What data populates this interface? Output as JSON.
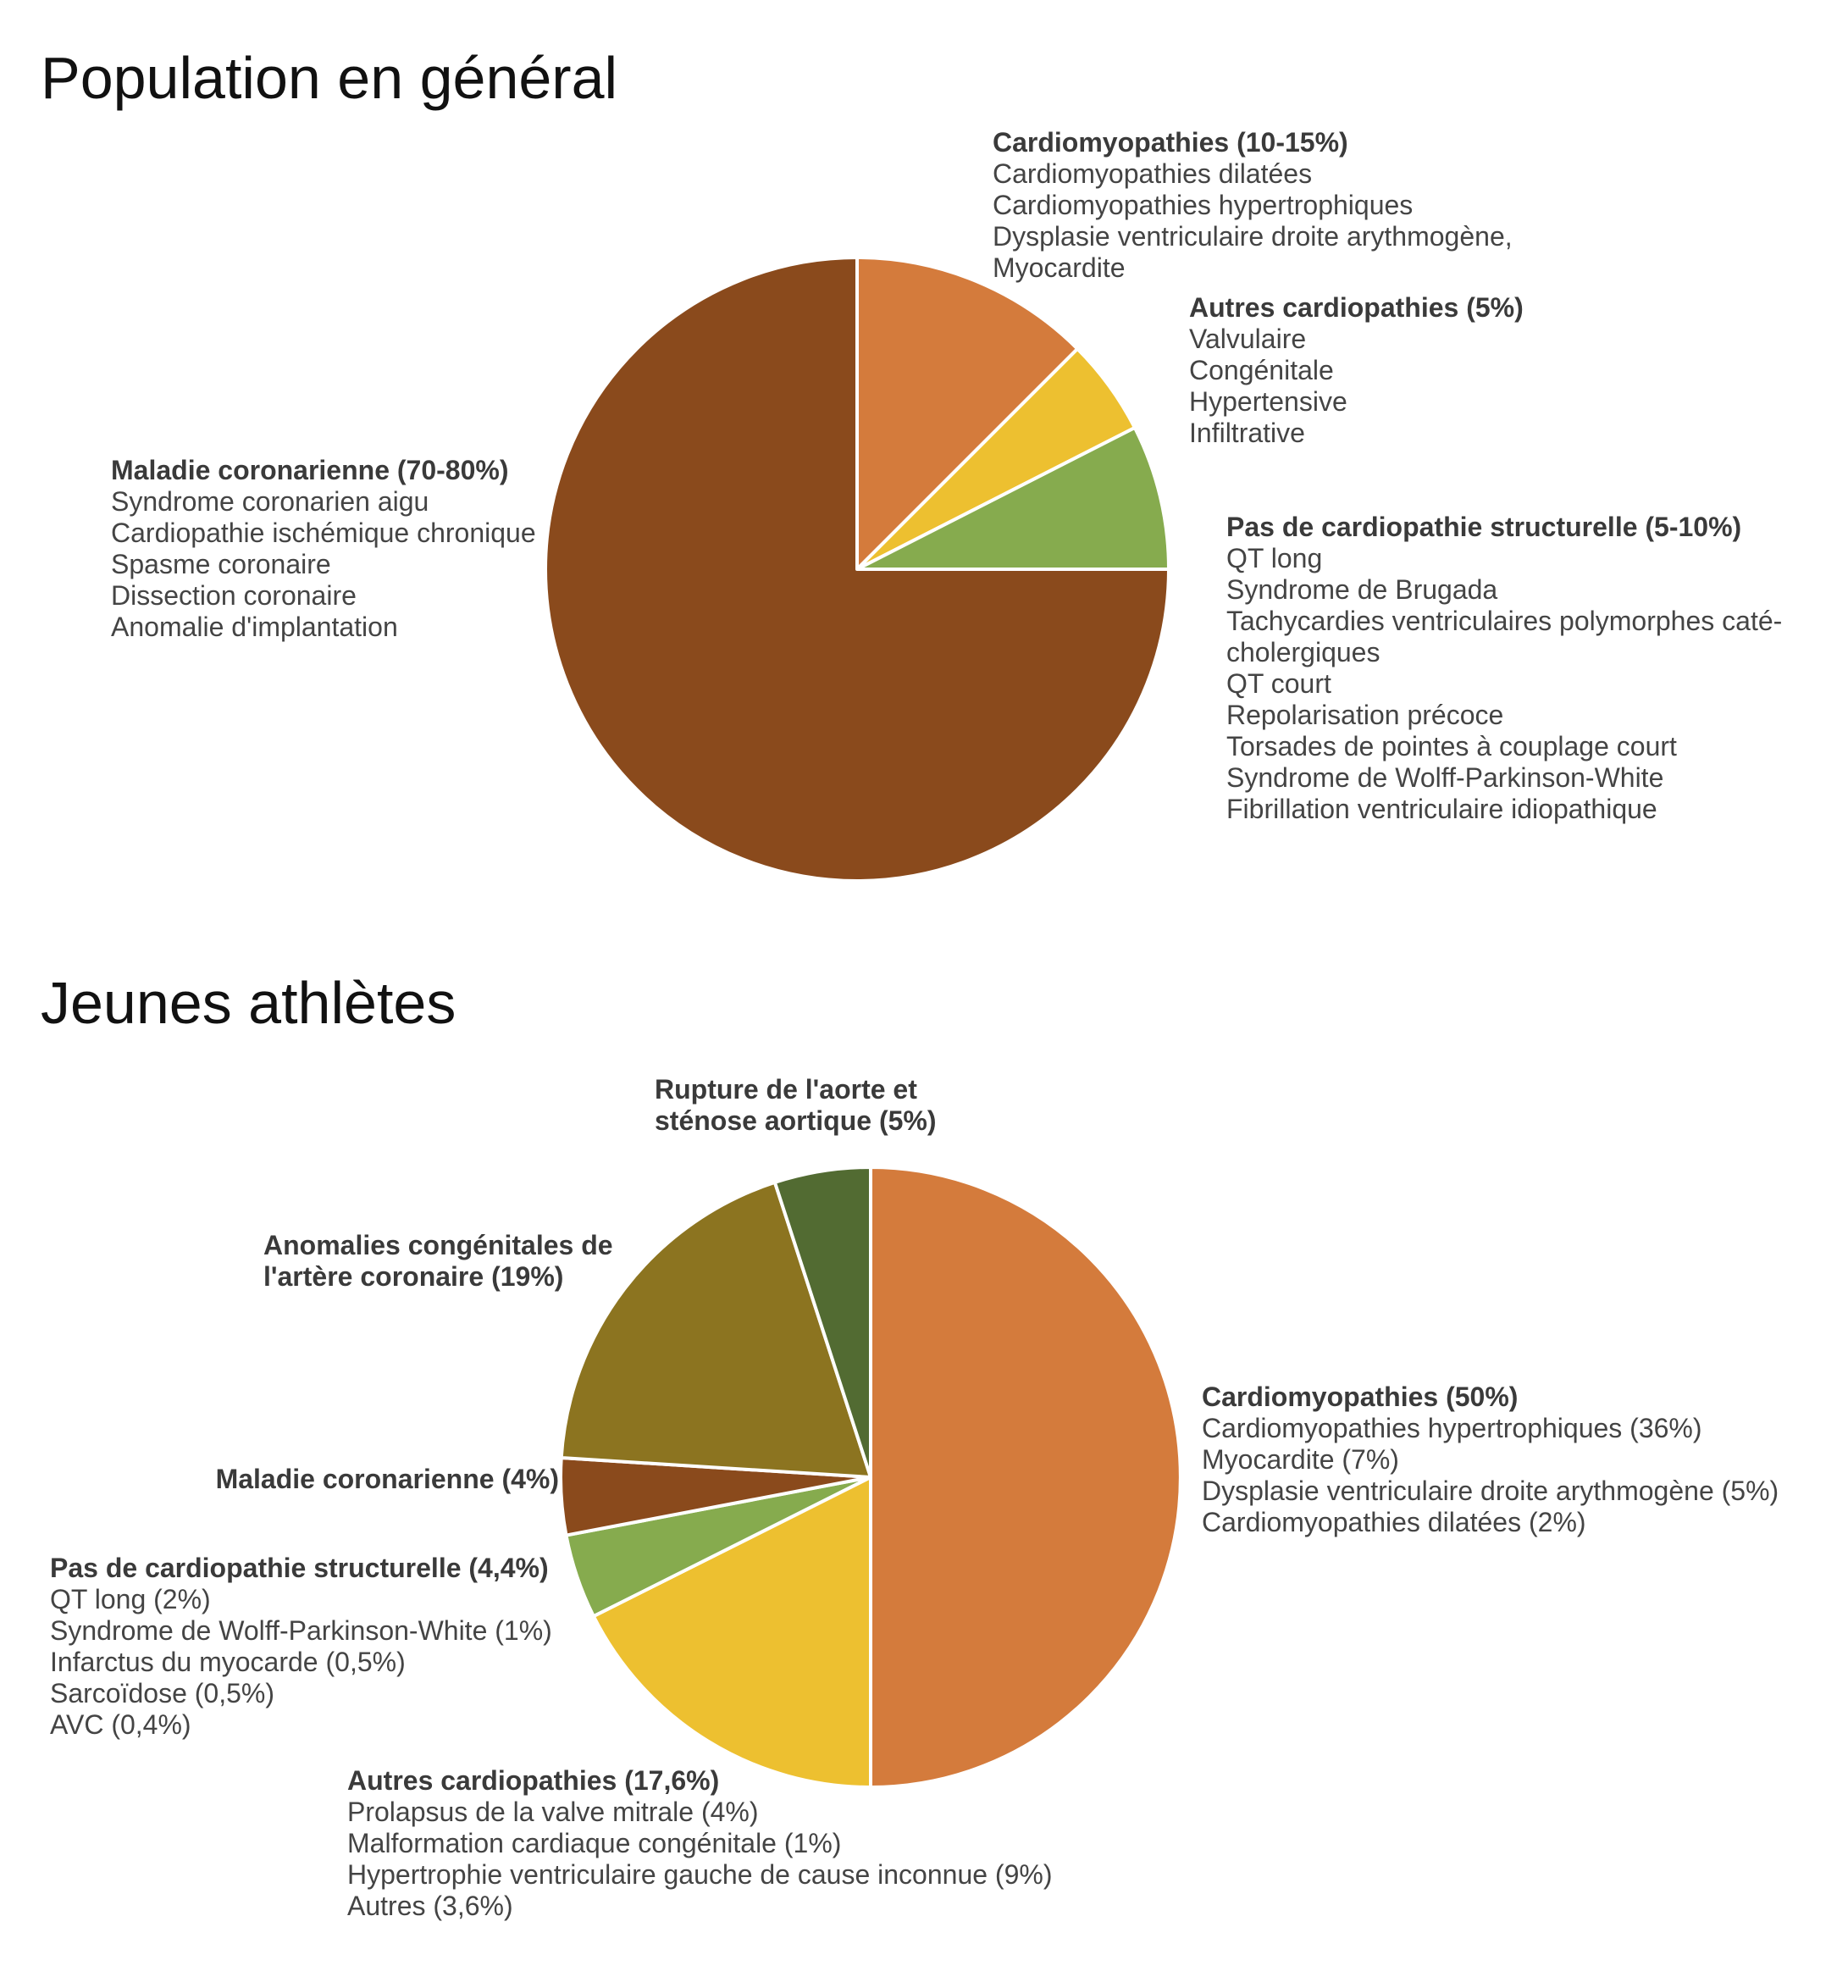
{
  "chart_data": [
    {
      "type": "pie",
      "title": "Population en général",
      "slices": [
        {
          "heading": "Cardiomyopathies (10-15%)",
          "value": 12.5,
          "color": "#D47B3C",
          "items": [
            "Cardiomyopathies dilatées",
            "Cardiomyopathies hypertrophiques",
            "Dysplasie ventriculaire droite arythmogène,",
            "Myocardite"
          ]
        },
        {
          "heading": "Autres cardiopathies (5%)",
          "value": 5,
          "color": "#EDC030",
          "items": [
            "Valvulaire",
            "Congénitale",
            "Hypertensive",
            "Infiltrative"
          ]
        },
        {
          "heading": "Pas de cardiopathie structurelle (5-10%)",
          "value": 7.5,
          "color": "#86AB4E",
          "items": [
            "QT long",
            "Syndrome de Brugada",
            "Tachycardies ventriculaires polymorphes caté-",
            "cholergiques",
            "QT court",
            "Repolarisation précoce",
            "Torsades de pointes à couplage court",
            "Syndrome de Wolff-Parkinson-White",
            "Fibrillation ventriculaire idiopathique"
          ]
        },
        {
          "heading": "Maladie coronarienne (70-80%)",
          "value": 75,
          "color": "#8A4A1C",
          "items": [
            "Syndrome coronarien aigu",
            "Cardiopathie ischémique chronique",
            "Spasme coronaire",
            "Dissection coronaire",
            "Anomalie d'implantation"
          ]
        }
      ]
    },
    {
      "type": "pie",
      "title": "Jeunes athlètes",
      "slices": [
        {
          "heading": "Cardiomyopathies (50%)",
          "value": 50,
          "color": "#D47B3C",
          "items": [
            "Cardiomyopathies hypertrophiques (36%)",
            "Myocardite (7%)",
            "Dysplasie ventriculaire droite arythmogène (5%)",
            "Cardiomyopathies dilatées (2%)"
          ]
        },
        {
          "heading": "Autres cardiopathies (17,6%)",
          "value": 17.6,
          "color": "#EDC030",
          "items": [
            "Prolapsus de la valve mitrale (4%)",
            "Malformation cardiaque congénitale (1%)",
            "Hypertrophie ventriculaire gauche de cause inconnue (9%)",
            "Autres (3,6%)"
          ]
        },
        {
          "heading": "Pas de cardiopathie structurelle (4,4%)",
          "value": 4.4,
          "color": "#86AB4E",
          "items": [
            "QT long (2%)",
            "Syndrome de Wolff-Parkinson-White (1%)",
            "Infarctus du myocarde (0,5%)",
            "Sarcoïdose (0,5%)",
            "AVC (0,4%)"
          ]
        },
        {
          "heading": "Maladie coronarienne (4%)",
          "value": 4,
          "color": "#8A4A1C",
          "items": []
        },
        {
          "heading": "Anomalies congénitales de\nl'artère coronaire (19%)",
          "value": 19,
          "color": "#8C7420",
          "items": []
        },
        {
          "heading": "Rupture de l'aorte et\nsténose aortique (5%)",
          "value": 5,
          "color": "#526B32",
          "items": []
        }
      ]
    }
  ]
}
